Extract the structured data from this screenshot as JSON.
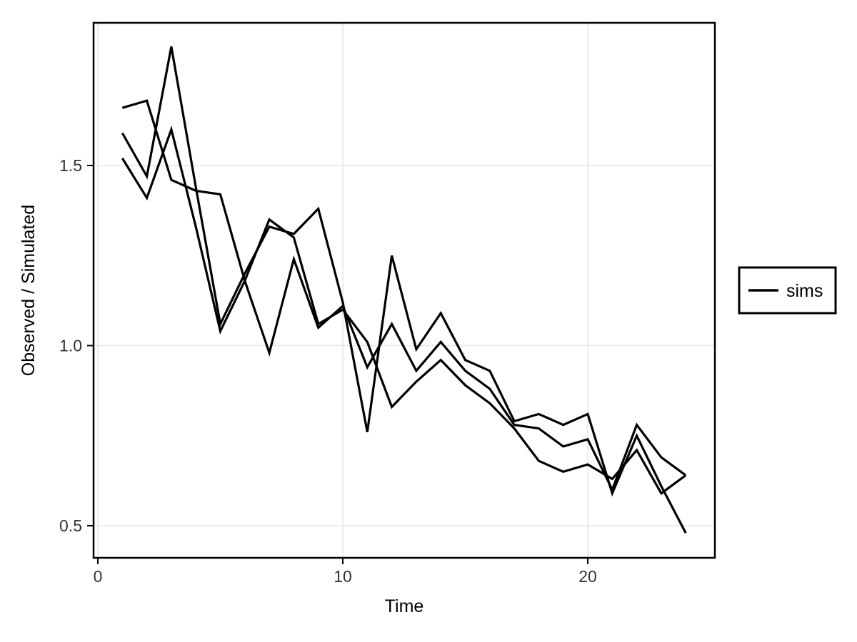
{
  "chart_data": {
    "type": "line",
    "title": "",
    "xlabel": "Time",
    "ylabel": "Observed / Simulated",
    "x": [
      1,
      2,
      3,
      4,
      5,
      6,
      7,
      8,
      9,
      10,
      11,
      12,
      13,
      14,
      15,
      16,
      17,
      18,
      19,
      20,
      21,
      22,
      23,
      24
    ],
    "series": [
      {
        "name": "sims",
        "values": [
          1.66,
          1.68,
          1.46,
          1.43,
          1.42,
          1.18,
          0.98,
          1.24,
          1.05,
          1.11,
          0.94,
          1.06,
          0.93,
          1.01,
          0.93,
          0.88,
          0.78,
          0.77,
          0.72,
          0.74,
          0.6,
          0.78,
          0.69,
          0.64
        ]
      },
      {
        "name": "sims",
        "values": [
          1.59,
          1.47,
          1.83,
          1.44,
          1.06,
          1.2,
          1.33,
          1.31,
          1.38,
          1.12,
          0.76,
          1.25,
          0.99,
          1.09,
          0.96,
          0.93,
          0.79,
          0.81,
          0.78,
          0.81,
          0.59,
          0.75,
          0.61,
          0.48
        ]
      },
      {
        "name": "sims",
        "values": [
          1.52,
          1.41,
          1.6,
          1.33,
          1.04,
          1.18,
          1.35,
          1.3,
          1.06,
          1.1,
          1.01,
          0.83,
          0.9,
          0.96,
          0.89,
          0.84,
          0.77,
          0.68,
          0.65,
          0.67,
          0.63,
          0.71,
          0.59,
          0.64
        ]
      }
    ],
    "x_ticks": [
      0,
      10,
      20
    ],
    "x_tick_labels": [
      "0",
      "10",
      "20"
    ],
    "y_ticks": [
      0.5,
      1.0,
      1.5
    ],
    "y_tick_labels": [
      "0.5",
      "1.0",
      "1.5"
    ],
    "xlim": [
      -0.18,
      25.2
    ],
    "ylim": [
      0.41,
      1.9
    ],
    "grid": "major",
    "legend_position": "right",
    "line_color": "#000000",
    "grid_color": "#e6e6e6",
    "panel_border_color": "#000000",
    "background_color": "#ffffff"
  },
  "legend": {
    "label": "sims"
  },
  "axes": {
    "xlabel": "Time",
    "ylabel": "Observed / Simulated"
  }
}
